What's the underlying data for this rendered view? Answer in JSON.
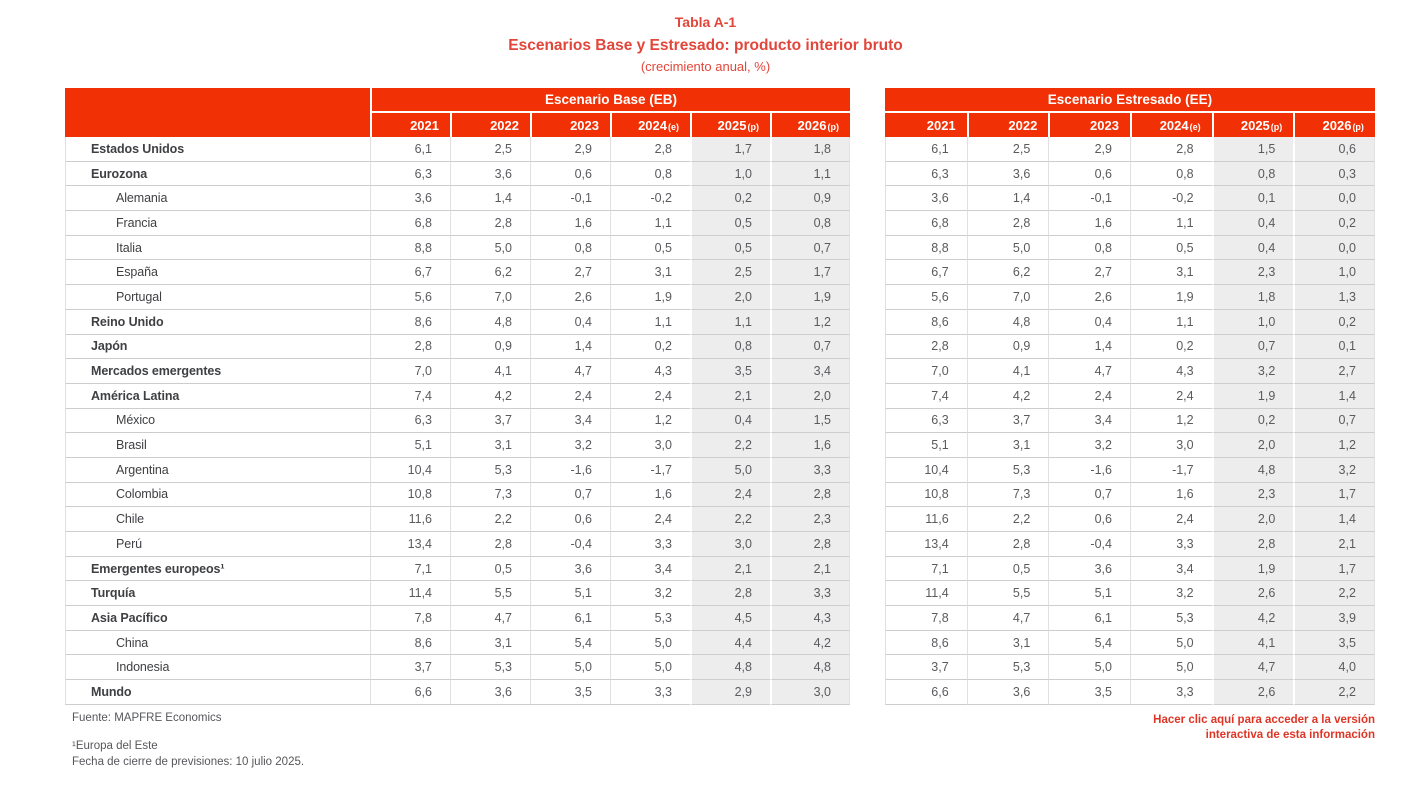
{
  "title": {
    "line1": "Tabla A-1",
    "line2": "Escenarios Base y Estresado: producto interior bruto",
    "line3": "(crecimiento anual, %)"
  },
  "colors": {
    "header_red": "#f13105",
    "title_red": "#e2463a",
    "link_red": "#de3526",
    "shade_gray": "#ededed",
    "row_line": "#cdcdcd",
    "col_line": "#e0e0e0",
    "label_text": "#3f4043",
    "value_text": "#5a5b5e",
    "footer_text": "#56575b"
  },
  "table": {
    "group_headers": [
      "Escenario Base (EB)",
      "Escenario Estresado (EE)"
    ],
    "years": [
      {
        "label": "2021",
        "suffix": ""
      },
      {
        "label": "2022",
        "suffix": ""
      },
      {
        "label": "2023",
        "suffix": ""
      },
      {
        "label": "2024",
        "suffix": "(e)"
      },
      {
        "label": "2025",
        "suffix": "(p)"
      },
      {
        "label": "2026",
        "suffix": "(p)"
      }
    ],
    "rows": [
      {
        "label": "Estados Unidos",
        "bold": true,
        "indent": false,
        "eb": [
          "6,1",
          "2,5",
          "2,9",
          "2,8",
          "1,7",
          "1,8"
        ],
        "ee": [
          "6,1",
          "2,5",
          "2,9",
          "2,8",
          "1,5",
          "0,6"
        ]
      },
      {
        "label": "Eurozona",
        "bold": true,
        "indent": false,
        "eb": [
          "6,3",
          "3,6",
          "0,6",
          "0,8",
          "1,0",
          "1,1"
        ],
        "ee": [
          "6,3",
          "3,6",
          "0,6",
          "0,8",
          "0,8",
          "0,3"
        ]
      },
      {
        "label": "Alemania",
        "bold": false,
        "indent": true,
        "eb": [
          "3,6",
          "1,4",
          "-0,1",
          "-0,2",
          "0,2",
          "0,9"
        ],
        "ee": [
          "3,6",
          "1,4",
          "-0,1",
          "-0,2",
          "0,1",
          "0,0"
        ]
      },
      {
        "label": "Francia",
        "bold": false,
        "indent": true,
        "eb": [
          "6,8",
          "2,8",
          "1,6",
          "1,1",
          "0,5",
          "0,8"
        ],
        "ee": [
          "6,8",
          "2,8",
          "1,6",
          "1,1",
          "0,4",
          "0,2"
        ]
      },
      {
        "label": "Italia",
        "bold": false,
        "indent": true,
        "eb": [
          "8,8",
          "5,0",
          "0,8",
          "0,5",
          "0,5",
          "0,7"
        ],
        "ee": [
          "8,8",
          "5,0",
          "0,8",
          "0,5",
          "0,4",
          "0,0"
        ]
      },
      {
        "label": "España",
        "bold": false,
        "indent": true,
        "eb": [
          "6,7",
          "6,2",
          "2,7",
          "3,1",
          "2,5",
          "1,7"
        ],
        "ee": [
          "6,7",
          "6,2",
          "2,7",
          "3,1",
          "2,3",
          "1,0"
        ]
      },
      {
        "label": "Portugal",
        "bold": false,
        "indent": true,
        "eb": [
          "5,6",
          "7,0",
          "2,6",
          "1,9",
          "2,0",
          "1,9"
        ],
        "ee": [
          "5,6",
          "7,0",
          "2,6",
          "1,9",
          "1,8",
          "1,3"
        ]
      },
      {
        "label": "Reino Unido",
        "bold": true,
        "indent": false,
        "eb": [
          "8,6",
          "4,8",
          "0,4",
          "1,1",
          "1,1",
          "1,2"
        ],
        "ee": [
          "8,6",
          "4,8",
          "0,4",
          "1,1",
          "1,0",
          "0,2"
        ]
      },
      {
        "label": "Japón",
        "bold": true,
        "indent": false,
        "eb": [
          "2,8",
          "0,9",
          "1,4",
          "0,2",
          "0,8",
          "0,7"
        ],
        "ee": [
          "2,8",
          "0,9",
          "1,4",
          "0,2",
          "0,7",
          "0,1"
        ]
      },
      {
        "label": "Mercados emergentes",
        "bold": true,
        "indent": false,
        "eb": [
          "7,0",
          "4,1",
          "4,7",
          "4,3",
          "3,5",
          "3,4"
        ],
        "ee": [
          "7,0",
          "4,1",
          "4,7",
          "4,3",
          "3,2",
          "2,7"
        ]
      },
      {
        "label": "América Latina",
        "bold": true,
        "indent": false,
        "eb": [
          "7,4",
          "4,2",
          "2,4",
          "2,4",
          "2,1",
          "2,0"
        ],
        "ee": [
          "7,4",
          "4,2",
          "2,4",
          "2,4",
          "1,9",
          "1,4"
        ]
      },
      {
        "label": "México",
        "bold": false,
        "indent": true,
        "eb": [
          "6,3",
          "3,7",
          "3,4",
          "1,2",
          "0,4",
          "1,5"
        ],
        "ee": [
          "6,3",
          "3,7",
          "3,4",
          "1,2",
          "0,2",
          "0,7"
        ]
      },
      {
        "label": "Brasil",
        "bold": false,
        "indent": true,
        "eb": [
          "5,1",
          "3,1",
          "3,2",
          "3,0",
          "2,2",
          "1,6"
        ],
        "ee": [
          "5,1",
          "3,1",
          "3,2",
          "3,0",
          "2,0",
          "1,2"
        ]
      },
      {
        "label": "Argentina",
        "bold": false,
        "indent": true,
        "eb": [
          "10,4",
          "5,3",
          "-1,6",
          "-1,7",
          "5,0",
          "3,3"
        ],
        "ee": [
          "10,4",
          "5,3",
          "-1,6",
          "-1,7",
          "4,8",
          "3,2"
        ]
      },
      {
        "label": "Colombia",
        "bold": false,
        "indent": true,
        "eb": [
          "10,8",
          "7,3",
          "0,7",
          "1,6",
          "2,4",
          "2,8"
        ],
        "ee": [
          "10,8",
          "7,3",
          "0,7",
          "1,6",
          "2,3",
          "1,7"
        ]
      },
      {
        "label": "Chile",
        "bold": false,
        "indent": true,
        "eb": [
          "11,6",
          "2,2",
          "0,6",
          "2,4",
          "2,2",
          "2,3"
        ],
        "ee": [
          "11,6",
          "2,2",
          "0,6",
          "2,4",
          "2,0",
          "1,4"
        ]
      },
      {
        "label": "Perú",
        "bold": false,
        "indent": true,
        "eb": [
          "13,4",
          "2,8",
          "-0,4",
          "3,3",
          "3,0",
          "2,8"
        ],
        "ee": [
          "13,4",
          "2,8",
          "-0,4",
          "3,3",
          "2,8",
          "2,1"
        ]
      },
      {
        "label": "Emergentes europeos¹",
        "bold": true,
        "indent": false,
        "eb": [
          "7,1",
          "0,5",
          "3,6",
          "3,4",
          "2,1",
          "2,1"
        ],
        "ee": [
          "7,1",
          "0,5",
          "3,6",
          "3,4",
          "1,9",
          "1,7"
        ]
      },
      {
        "label": "Turquía",
        "bold": true,
        "indent": false,
        "eb": [
          "11,4",
          "5,5",
          "5,1",
          "3,2",
          "2,8",
          "3,3"
        ],
        "ee": [
          "11,4",
          "5,5",
          "5,1",
          "3,2",
          "2,6",
          "2,2"
        ]
      },
      {
        "label": "Asia Pacífico",
        "bold": true,
        "indent": false,
        "eb": [
          "7,8",
          "4,7",
          "6,1",
          "5,3",
          "4,5",
          "4,3"
        ],
        "ee": [
          "7,8",
          "4,7",
          "6,1",
          "5,3",
          "4,2",
          "3,9"
        ]
      },
      {
        "label": "China",
        "bold": false,
        "indent": true,
        "eb": [
          "8,6",
          "3,1",
          "5,4",
          "5,0",
          "4,4",
          "4,2"
        ],
        "ee": [
          "8,6",
          "3,1",
          "5,4",
          "5,0",
          "4,1",
          "3,5"
        ]
      },
      {
        "label": "Indonesia",
        "bold": false,
        "indent": true,
        "eb": [
          "3,7",
          "5,3",
          "5,0",
          "5,0",
          "4,8",
          "4,8"
        ],
        "ee": [
          "3,7",
          "5,3",
          "5,0",
          "5,0",
          "4,7",
          "4,0"
        ]
      },
      {
        "label": "Mundo",
        "bold": true,
        "indent": false,
        "eb": [
          "6,6",
          "3,6",
          "3,5",
          "3,3",
          "2,9",
          "3,0"
        ],
        "ee": [
          "6,6",
          "3,6",
          "3,5",
          "3,3",
          "2,6",
          "2,2"
        ]
      }
    ]
  },
  "footer": {
    "source": "Fuente: MAPFRE Economics",
    "note1": "¹Europa del Este",
    "note2": "Fecha de cierre de previsiones: 10 julio 2025.",
    "link": "Hacer clic aquí para acceder a la versión interactiva de esta información"
  }
}
